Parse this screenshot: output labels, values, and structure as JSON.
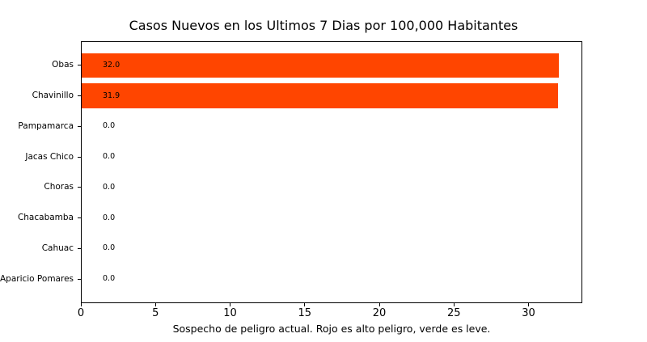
{
  "figure": {
    "background": "#ffffff"
  },
  "chart_data": {
    "type": "bar",
    "orientation": "horizontal",
    "title": "Casos Nuevos en los Ultimos 7 Dias por 100,000 Habitantes",
    "xlabel": "Sospecho de peligro actual. Rojo es alto peligro, verde es leve.",
    "ylabel": "",
    "categories": [
      "Obas",
      "Chavinillo",
      "Pampamarca",
      "Jacas Chico",
      "Choras",
      "Chacabamba",
      "Cahuac",
      "Aparicio Pomares"
    ],
    "values": [
      32.0,
      31.9,
      0.0,
      0.0,
      0.0,
      0.0,
      0.0,
      0.0
    ],
    "value_labels": [
      "32.0",
      "31.9",
      "0.0",
      "0.0",
      "0.0",
      "0.0",
      "0.0",
      "0.0"
    ],
    "xticks": [
      0,
      5,
      10,
      15,
      20,
      25,
      30
    ],
    "xlim": [
      0,
      33.6
    ],
    "bar_color": "#FF4500",
    "text_color": "#000000",
    "grid": false,
    "legend": null
  }
}
